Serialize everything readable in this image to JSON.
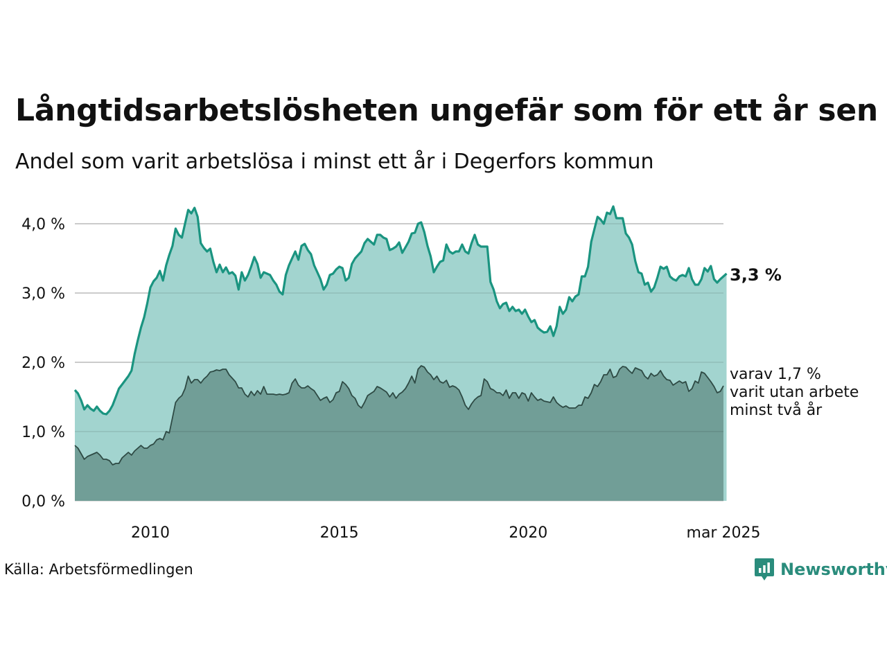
{
  "title": "Långtidsarbetslösheten ungefär som för ett år sen",
  "subtitle": "Andel som varit arbetslösa i minst ett år i Degerfors kommun",
  "source": "Källa: Arbetsförmedlingen",
  "brand": {
    "name": "Newsworthy",
    "icon": "newsworthy-logo-icon",
    "color": "#2a8c7c"
  },
  "colors": {
    "series_long_line": "#1a9480",
    "series_long_fill": "#a2d4cf",
    "series_two_line": "#2e4a44",
    "series_two_fill": "#719e97",
    "grid": "#dddddd"
  },
  "chart_data": {
    "type": "area",
    "x_start": "2008-01",
    "x_end": "2025-03",
    "x_interval": "month",
    "ylim": [
      0,
      4.0
    ],
    "grid": true,
    "y_ticks": [
      {
        "value": 0,
        "label": "0,0 %"
      },
      {
        "value": 1,
        "label": "1,0 %"
      },
      {
        "value": 2,
        "label": "2,0 %"
      },
      {
        "value": 3,
        "label": "3,0 %"
      },
      {
        "value": 4,
        "label": "4,0 %"
      }
    ],
    "x_ticks": [
      {
        "date": "2010-01",
        "label": "2010"
      },
      {
        "date": "2015-01",
        "label": "2015"
      },
      {
        "date": "2020-01",
        "label": "2020"
      },
      {
        "date": "2025-03",
        "label": "mar 2025"
      }
    ],
    "annotations": {
      "end_value_label": "3,3 %",
      "sub_series_label": [
        "varav 1,7 %",
        "varit utan arbete",
        "minst två år"
      ]
    },
    "series": [
      {
        "key": "minst_ett_ar",
        "values": [
          1.6,
          1.55,
          1.45,
          1.32,
          1.38,
          1.33,
          1.3,
          1.36,
          1.3,
          1.26,
          1.25,
          1.3,
          1.38,
          1.5,
          1.62,
          1.68,
          1.74,
          1.8,
          1.88,
          2.12,
          2.32,
          2.5,
          2.65,
          2.85,
          3.08,
          3.17,
          3.22,
          3.32,
          3.18,
          3.4,
          3.55,
          3.68,
          3.93,
          3.84,
          3.8,
          4.0,
          4.2,
          4.15,
          4.23,
          4.1,
          3.72,
          3.65,
          3.6,
          3.64,
          3.45,
          3.3,
          3.41,
          3.3,
          3.37,
          3.28,
          3.3,
          3.25,
          3.05,
          3.3,
          3.18,
          3.26,
          3.38,
          3.52,
          3.42,
          3.22,
          3.3,
          3.28,
          3.26,
          3.18,
          3.12,
          3.02,
          2.98,
          3.26,
          3.4,
          3.5,
          3.6,
          3.48,
          3.68,
          3.71,
          3.62,
          3.56,
          3.4,
          3.3,
          3.2,
          3.05,
          3.12,
          3.26,
          3.28,
          3.34,
          3.38,
          3.36,
          3.18,
          3.22,
          3.42,
          3.5,
          3.55,
          3.6,
          3.72,
          3.78,
          3.74,
          3.7,
          3.84,
          3.84,
          3.8,
          3.78,
          3.62,
          3.64,
          3.67,
          3.73,
          3.58,
          3.66,
          3.74,
          3.86,
          3.87,
          4.0,
          4.02,
          3.88,
          3.68,
          3.53,
          3.3,
          3.38,
          3.45,
          3.47,
          3.7,
          3.6,
          3.57,
          3.6,
          3.6,
          3.7,
          3.6,
          3.57,
          3.72,
          3.84,
          3.7,
          3.67,
          3.67,
          3.67,
          3.16,
          3.05,
          2.88,
          2.78,
          2.84,
          2.86,
          2.74,
          2.8,
          2.74,
          2.76,
          2.7,
          2.76,
          2.66,
          2.58,
          2.61,
          2.5,
          2.46,
          2.43,
          2.44,
          2.52,
          2.38,
          2.52,
          2.8,
          2.7,
          2.76,
          2.94,
          2.88,
          2.95,
          2.98,
          3.24,
          3.24,
          3.38,
          3.74,
          3.92,
          4.1,
          4.06,
          4.0,
          4.16,
          4.14,
          4.25,
          4.08,
          4.08,
          4.08,
          3.86,
          3.8,
          3.7,
          3.46,
          3.3,
          3.28,
          3.12,
          3.15,
          3.02,
          3.08,
          3.22,
          3.38,
          3.35,
          3.38,
          3.24,
          3.2,
          3.18,
          3.24,
          3.26,
          3.24,
          3.36,
          3.2,
          3.12,
          3.12,
          3.2,
          3.36,
          3.31,
          3.39,
          3.2,
          3.15,
          3.2,
          3.24,
          3.28
        ]
      },
      {
        "key": "minst_tva_ar",
        "values": [
          0.8,
          0.76,
          0.68,
          0.6,
          0.64,
          0.66,
          0.68,
          0.7,
          0.66,
          0.6,
          0.6,
          0.58,
          0.52,
          0.54,
          0.54,
          0.62,
          0.66,
          0.7,
          0.66,
          0.72,
          0.76,
          0.8,
          0.76,
          0.76,
          0.8,
          0.82,
          0.88,
          0.9,
          0.88,
          1.0,
          0.98,
          1.2,
          1.42,
          1.48,
          1.52,
          1.62,
          1.8,
          1.7,
          1.75,
          1.75,
          1.7,
          1.76,
          1.8,
          1.86,
          1.87,
          1.89,
          1.88,
          1.9,
          1.9,
          1.82,
          1.77,
          1.72,
          1.63,
          1.63,
          1.54,
          1.5,
          1.58,
          1.52,
          1.59,
          1.54,
          1.65,
          1.54,
          1.54,
          1.54,
          1.53,
          1.54,
          1.53,
          1.54,
          1.56,
          1.7,
          1.76,
          1.67,
          1.63,
          1.63,
          1.66,
          1.62,
          1.59,
          1.52,
          1.45,
          1.48,
          1.5,
          1.42,
          1.46,
          1.56,
          1.58,
          1.72,
          1.68,
          1.62,
          1.52,
          1.48,
          1.38,
          1.34,
          1.42,
          1.52,
          1.55,
          1.58,
          1.65,
          1.63,
          1.6,
          1.57,
          1.5,
          1.56,
          1.48,
          1.54,
          1.57,
          1.62,
          1.7,
          1.8,
          1.7,
          1.9,
          1.95,
          1.93,
          1.86,
          1.82,
          1.75,
          1.8,
          1.72,
          1.7,
          1.74,
          1.64,
          1.66,
          1.64,
          1.6,
          1.5,
          1.38,
          1.32,
          1.4,
          1.46,
          1.5,
          1.52,
          1.76,
          1.72,
          1.62,
          1.6,
          1.56,
          1.56,
          1.52,
          1.6,
          1.48,
          1.56,
          1.56,
          1.48,
          1.56,
          1.54,
          1.44,
          1.56,
          1.5,
          1.45,
          1.47,
          1.44,
          1.43,
          1.42,
          1.5,
          1.42,
          1.38,
          1.35,
          1.37,
          1.34,
          1.34,
          1.34,
          1.38,
          1.38,
          1.5,
          1.48,
          1.56,
          1.68,
          1.65,
          1.72,
          1.82,
          1.82,
          1.9,
          1.78,
          1.8,
          1.9,
          1.94,
          1.93,
          1.88,
          1.84,
          1.92,
          1.9,
          1.88,
          1.8,
          1.76,
          1.84,
          1.8,
          1.82,
          1.88,
          1.8,
          1.75,
          1.74,
          1.67,
          1.7,
          1.73,
          1.7,
          1.72,
          1.58,
          1.62,
          1.73,
          1.7,
          1.86,
          1.84,
          1.78,
          1.72,
          1.65,
          1.56,
          1.58,
          1.66
        ]
      }
    ]
  }
}
